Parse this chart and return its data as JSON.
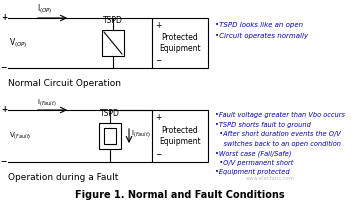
{
  "bg_color": "#ffffff",
  "title": "Figure 1. Normal and Fault Conditions",
  "title_fontsize": 7.0,
  "line_color": "#000000",
  "blue": "#0000bb",
  "notes1": [
    "•TSPD looks like an open",
    "•Circuit operates normally"
  ],
  "notes2": [
    "•Fault voltage greater than Vbo occurs",
    "•TSPD shorts fault to ground",
    "  •After short duration events the O/V",
    "    switches back to an open condition",
    "•Worst case (Fail/Safe)",
    "  •O/V permanent short",
    "•Equipment protected"
  ],
  "fs_note": 5.0,
  "fs_small": 5.5,
  "fs_label": 6.5,
  "watermark": "www.elecfans.com"
}
